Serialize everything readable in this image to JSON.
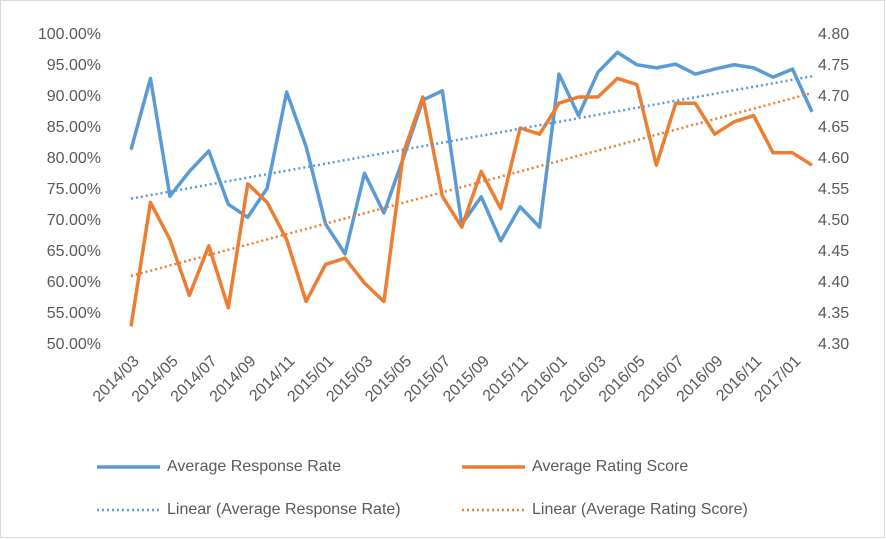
{
  "chart_data": {
    "type": "line",
    "categories": [
      "2014/03",
      null,
      "2014/05",
      null,
      "2014/07",
      null,
      "2014/09",
      null,
      "2014/11",
      null,
      "2015/01",
      null,
      "2015/03",
      null,
      "2015/05",
      null,
      "2015/07",
      null,
      "2015/09",
      null,
      "2015/11",
      null,
      "2016/01",
      null,
      "2016/03",
      null,
      "2016/05",
      null,
      "2016/07",
      null,
      "2016/09",
      null,
      "2016/11",
      null,
      "2017/01",
      null
    ],
    "series": [
      {
        "name": "Average Response Rate",
        "color": "#5b9bd5",
        "values": [
          81.5,
          93,
          74,
          78,
          81.3,
          72.7,
          70.6,
          75.3,
          90.8,
          82,
          69.5,
          64.7,
          77.7,
          71.3,
          80.2,
          89.5,
          91,
          69.5,
          73.9,
          66.8,
          72.3,
          69,
          93.7,
          87,
          94,
          97.2,
          95.2,
          94.7,
          95.3,
          93.7,
          94.5,
          95.2,
          94.7,
          93.2,
          94.5,
          87.6
        ]
      },
      {
        "name": "Average Rating Score",
        "color": "#ed7d31",
        "axis": "y2",
        "values": [
          4.33,
          4.53,
          4.47,
          4.38,
          4.46,
          4.36,
          4.56,
          4.53,
          4.47,
          4.37,
          4.43,
          4.44,
          4.4,
          4.37,
          4.61,
          4.7,
          4.54,
          4.49,
          4.58,
          4.52,
          4.65,
          4.64,
          4.69,
          4.7,
          4.7,
          4.73,
          4.72,
          4.59,
          4.69,
          4.69,
          4.64,
          4.66,
          4.67,
          4.61,
          4.61,
          4.59
        ]
      }
    ],
    "trendlines": [
      {
        "name": "Linear (Average Response Rate)",
        "color": "#5b9bd5",
        "series": 0
      },
      {
        "name": "Linear (Average Rating Score)",
        "color": "#ed7d31",
        "series": 1
      }
    ],
    "ylim": [
      50,
      100
    ],
    "yticks": [
      {
        "value": 50,
        "label": "50.00%"
      },
      {
        "value": 55,
        "label": "55.00%"
      },
      {
        "value": 60,
        "label": "60.00%"
      },
      {
        "value": 65,
        "label": "65.00%"
      },
      {
        "value": 70,
        "label": "70.00%"
      },
      {
        "value": 75,
        "label": "75.00%"
      },
      {
        "value": 80,
        "label": "80.00%"
      },
      {
        "value": 85,
        "label": "85.00%"
      },
      {
        "value": 90,
        "label": "90.00%"
      },
      {
        "value": 95,
        "label": "95.00%"
      },
      {
        "value": 100,
        "label": "100.00%"
      }
    ],
    "y2lim": [
      4.3,
      4.8
    ],
    "y2ticks": [
      {
        "value": 4.3,
        "label": "4.30"
      },
      {
        "value": 4.35,
        "label": "4.35"
      },
      {
        "value": 4.4,
        "label": "4.40"
      },
      {
        "value": 4.45,
        "label": "4.45"
      },
      {
        "value": 4.5,
        "label": "4.50"
      },
      {
        "value": 4.55,
        "label": "4.55"
      },
      {
        "value": 4.6,
        "label": "4.60"
      },
      {
        "value": 4.65,
        "label": "4.65"
      },
      {
        "value": 4.7,
        "label": "4.70"
      },
      {
        "value": 4.75,
        "label": "4.75"
      },
      {
        "value": 4.8,
        "label": "4.80"
      }
    ],
    "grid": false,
    "legend": "bottom"
  }
}
